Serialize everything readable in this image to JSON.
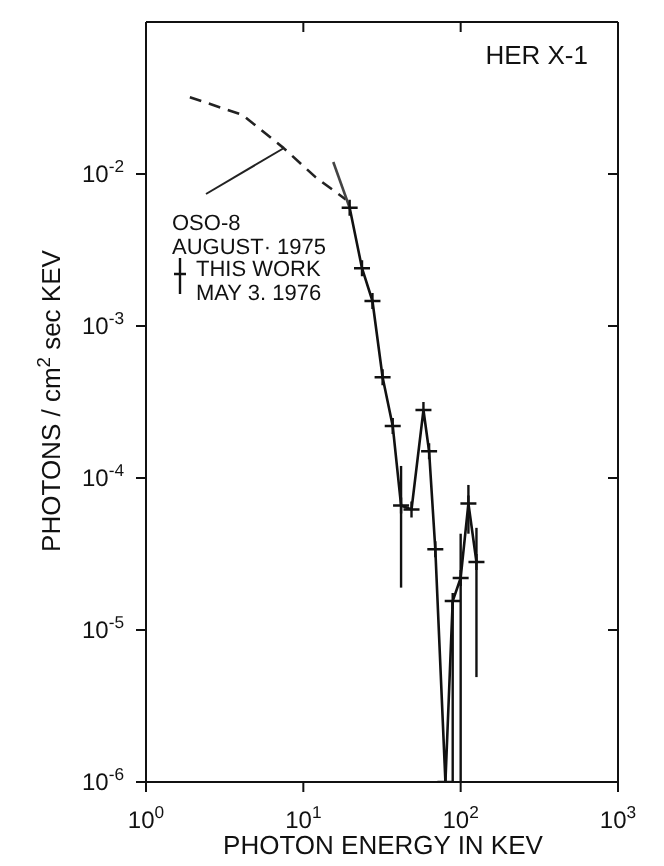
{
  "chart_data": {
    "type": "line",
    "title": "HER X-1",
    "xlabel": "PHOTON ENERGY IN KEV",
    "ylabel": "PHOTONS / cm$^{2}$ sec KEV",
    "log": "xy",
    "xlim": [
      1,
      1000
    ],
    "ylim": [
      1e-06,
      0.1
    ],
    "xticks": [
      {
        "value": 1,
        "label": "10$^{0}$"
      },
      {
        "value": 10,
        "label": "10$^{1}$"
      },
      {
        "value": 100,
        "label": "10$^{2}$"
      },
      {
        "value": 1000,
        "label": "10$^{3}$"
      }
    ],
    "yticks": [
      {
        "value": 1e-06,
        "label": "10$^{-6}$"
      },
      {
        "value": 1e-05,
        "label": "10$^{-5}$"
      },
      {
        "value": 0.0001,
        "label": "10$^{-4}$"
      },
      {
        "value": 0.001,
        "label": "10$^{-3}$"
      },
      {
        "value": 0.01,
        "label": "10$^{-2}$"
      }
    ],
    "legend": "top left",
    "series": [
      {
        "name": "OSO-8\nAUGUST· 1975",
        "color": "#222222",
        "line_style": "dashed",
        "marker": "none",
        "x": [
          1.9,
          4.1,
          7.5,
          12,
          18.6
        ],
        "values": [
          0.032,
          0.0245,
          0.0148,
          0.0095,
          0.0068
        ]
      },
      {
        "color": "#444444",
        "line_style": "solid",
        "marker": "none",
        "x": [
          15.5,
          19.7
        ],
        "values": [
          0.012,
          0.006
        ]
      },
      {
        "name": "THIS WORK\nMAY 3. 1976",
        "color": "#111111",
        "line_style": "solid",
        "marker": "cross",
        "x": [
          19.7,
          23.6,
          27.5,
          31.9,
          37,
          41.8,
          48.7,
          58,
          63,
          69,
          80,
          89,
          100,
          112,
          126
        ],
        "values": [
          0.006,
          0.0024,
          0.00146,
          0.00046,
          0.00022,
          6.6e-05,
          6.2e-05,
          0.00028,
          0.00015,
          3.4e-05,
          1e-06,
          1.55e-05,
          2.2e-05,
          6.8e-05,
          2.8e-05
        ],
        "errors": [
          null,
          null,
          null,
          null,
          null,
          [
            1.9e-05,
            0.00012
          ],
          null,
          null,
          null,
          null,
          null,
          [
            1e-06,
            1.55e-05
          ],
          [
            1e-06,
            4.3e-05
          ],
          [
            4.3e-05,
            9e-05
          ],
          [
            4.9e-06,
            4.7e-05
          ]
        ]
      }
    ]
  }
}
